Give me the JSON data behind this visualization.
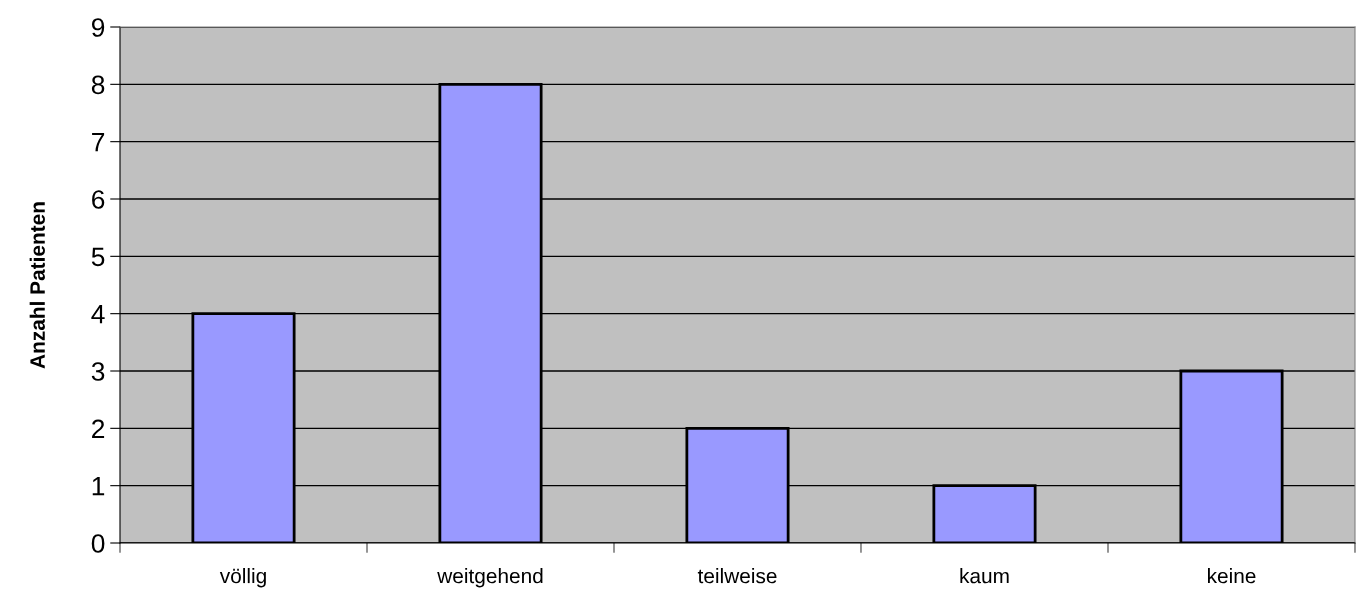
{
  "chart_data": {
    "type": "bar",
    "ylabel": "Anzahl Patienten",
    "categories": [
      "völlig",
      "weitgehend",
      "teilweise",
      "kaum",
      "keine"
    ],
    "values": [
      4,
      8,
      2,
      1,
      3
    ],
    "color": "#9999ff",
    "ylim": [
      0,
      9
    ],
    "yticks": [
      0,
      1,
      2,
      3,
      4,
      5,
      6,
      7,
      8,
      9
    ],
    "grid": "y",
    "legend": false
  }
}
